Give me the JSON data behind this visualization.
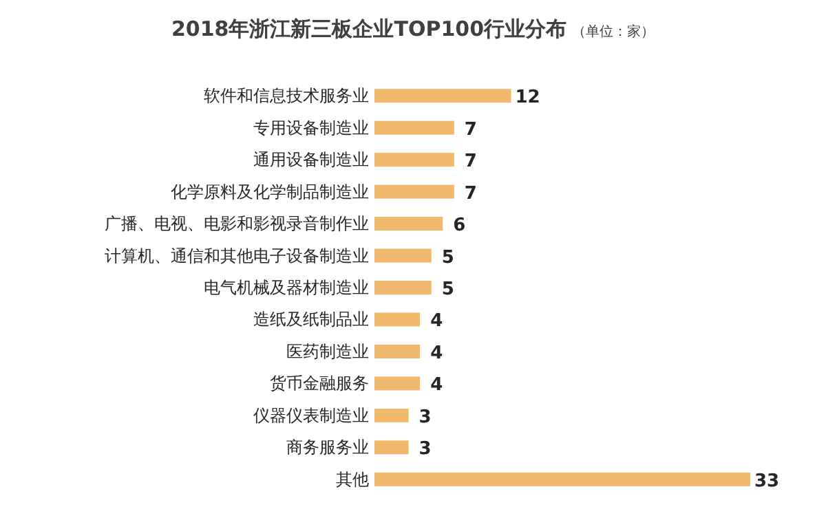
{
  "chart_data": {
    "type": "bar",
    "orientation": "horizontal",
    "title": "2018年浙江新三板企业TOP100行业分布",
    "subtitle": "（单位：家）",
    "categories": [
      "软件和信息技术服务业",
      "专用设备制造业",
      "通用设备制造业",
      "化学原料及化学制品制造业",
      "广播、电视、电影和影视录音制作业",
      "计算机、通信和其他电子设备制造业",
      "电气机械及器材制造业",
      "造纸及纸制品业",
      "医药制造业",
      "货币金融服务",
      "仪器仪表制造业",
      "商务服务业",
      "其他"
    ],
    "values": [
      12,
      7,
      7,
      7,
      6,
      5,
      5,
      4,
      4,
      4,
      3,
      3,
      33
    ],
    "color": "#f0b96e",
    "data_labels": true
  }
}
